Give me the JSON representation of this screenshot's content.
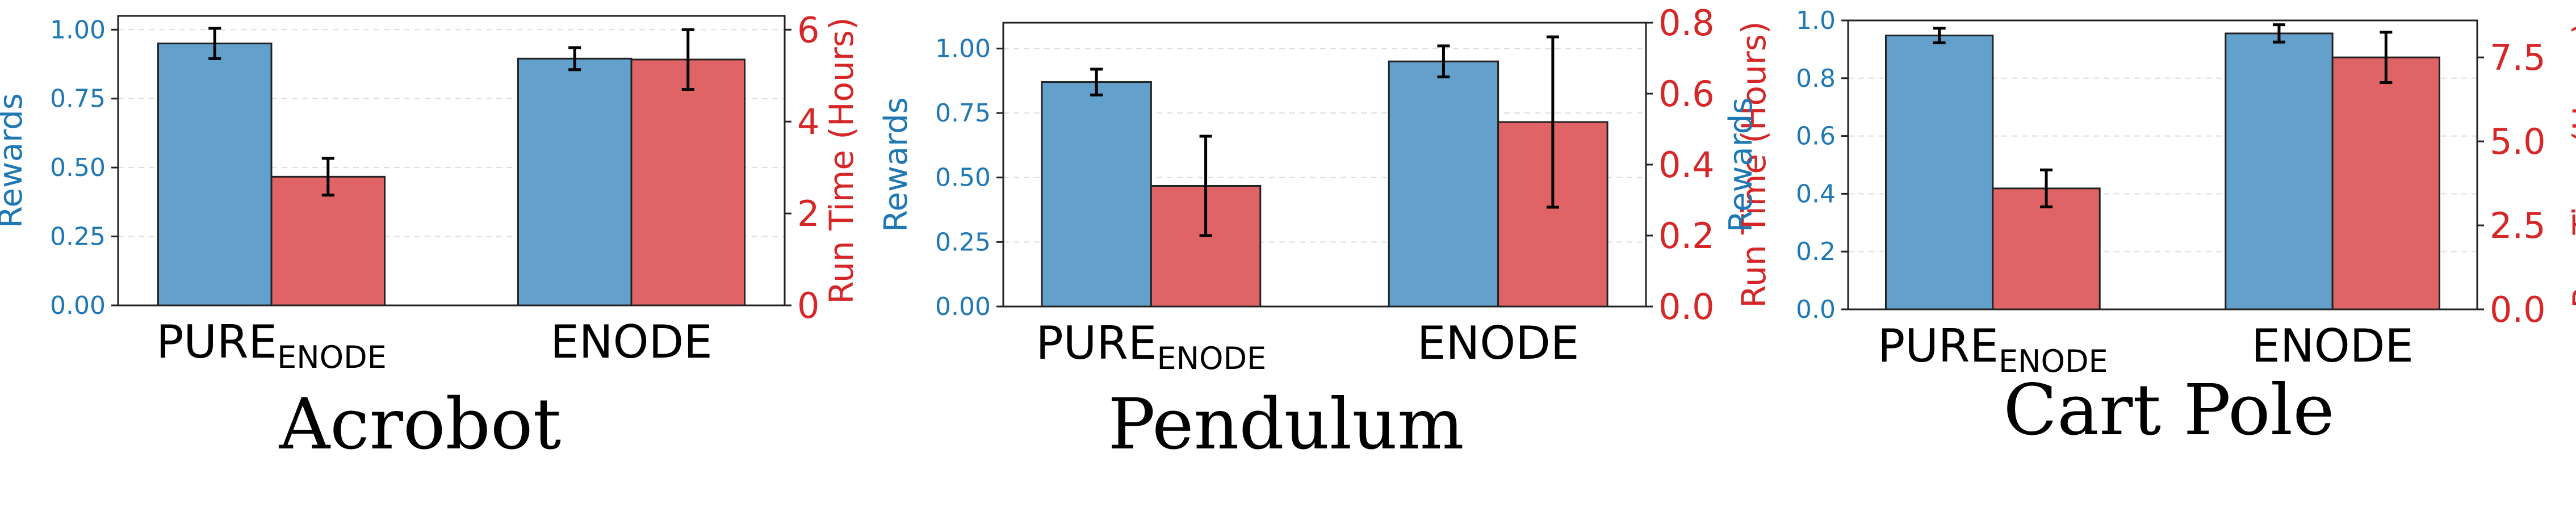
{
  "colors": {
    "rewards": "#1f77b4",
    "rewards_fill": "#63a0cb",
    "runtime": "#d62728",
    "runtime_fill": "#e06466",
    "error_bar": "#000000",
    "grid": "#dddddd"
  },
  "chart_data": [
    {
      "type": "bar",
      "title": "Acrobot",
      "categories": [
        {
          "base": "PURE",
          "sub": "ENODE"
        },
        {
          "base": "ENODE",
          "sub": ""
        }
      ],
      "ylabel_left": "Rewards",
      "ylabel_right": "Run Time (Hours)",
      "ylim_left": [
        0,
        1.05
      ],
      "ylim_right": [
        0,
        6.3
      ],
      "yticks_left": [
        "0.00",
        "0.25",
        "0.50",
        "0.75",
        "1.00"
      ],
      "yticks_right": [
        "0",
        "2",
        "4",
        "6"
      ],
      "grid": "horizontal dashed",
      "series": [
        {
          "name": "Rewards",
          "axis": "left",
          "values": [
            0.95,
            0.895
          ],
          "errors": [
            0.055,
            0.04
          ]
        },
        {
          "name": "Run Time (Hours)",
          "axis": "right",
          "values": [
            2.8,
            5.35
          ],
          "errors": [
            0.4,
            0.65
          ]
        }
      ]
    },
    {
      "type": "bar",
      "title": "Pendulum",
      "categories": [
        {
          "base": "PURE",
          "sub": "ENODE"
        },
        {
          "base": "ENODE",
          "sub": ""
        }
      ],
      "ylabel_left": "Rewards",
      "ylabel_right": "Run Time (Hours)",
      "ylim_left": [
        0,
        1.1
      ],
      "ylim_right": [
        0,
        0.8
      ],
      "yticks_left": [
        "0.00",
        "0.25",
        "0.50",
        "0.75",
        "1.00"
      ],
      "yticks_right": [
        "0.0",
        "0.2",
        "0.4",
        "0.6",
        "0.8"
      ],
      "grid": "horizontal dashed",
      "series": [
        {
          "name": "Rewards",
          "axis": "left",
          "values": [
            0.87,
            0.95
          ],
          "errors": [
            0.05,
            0.06
          ]
        },
        {
          "name": "Run Time (Hours)",
          "axis": "right",
          "values": [
            0.34,
            0.52
          ],
          "errors": [
            0.14,
            0.24
          ]
        }
      ]
    },
    {
      "type": "bar",
      "title": "Cart Pole",
      "categories": [
        {
          "base": "PURE",
          "sub": "ENODE"
        },
        {
          "base": "ENODE",
          "sub": ""
        }
      ],
      "ylabel_left": "Rewards",
      "ylabel_right": "Run Time (Hours)",
      "ylim_left": [
        0,
        1.0
      ],
      "ylim_right": [
        0,
        8.6
      ],
      "yticks_left": [
        "0.0",
        "0.2",
        "0.4",
        "0.6",
        "0.8",
        "1.0"
      ],
      "yticks_right": [
        "0.0",
        "2.5",
        "5.0",
        "7.5"
      ],
      "grid": "horizontal dashed",
      "series": [
        {
          "name": "Rewards",
          "axis": "left",
          "values": [
            0.948,
            0.955
          ],
          "errors": [
            0.025,
            0.03
          ]
        },
        {
          "name": "Run Time (Hours)",
          "axis": "right",
          "values": [
            3.6,
            7.5
          ],
          "errors": [
            0.55,
            0.75
          ]
        }
      ]
    }
  ]
}
